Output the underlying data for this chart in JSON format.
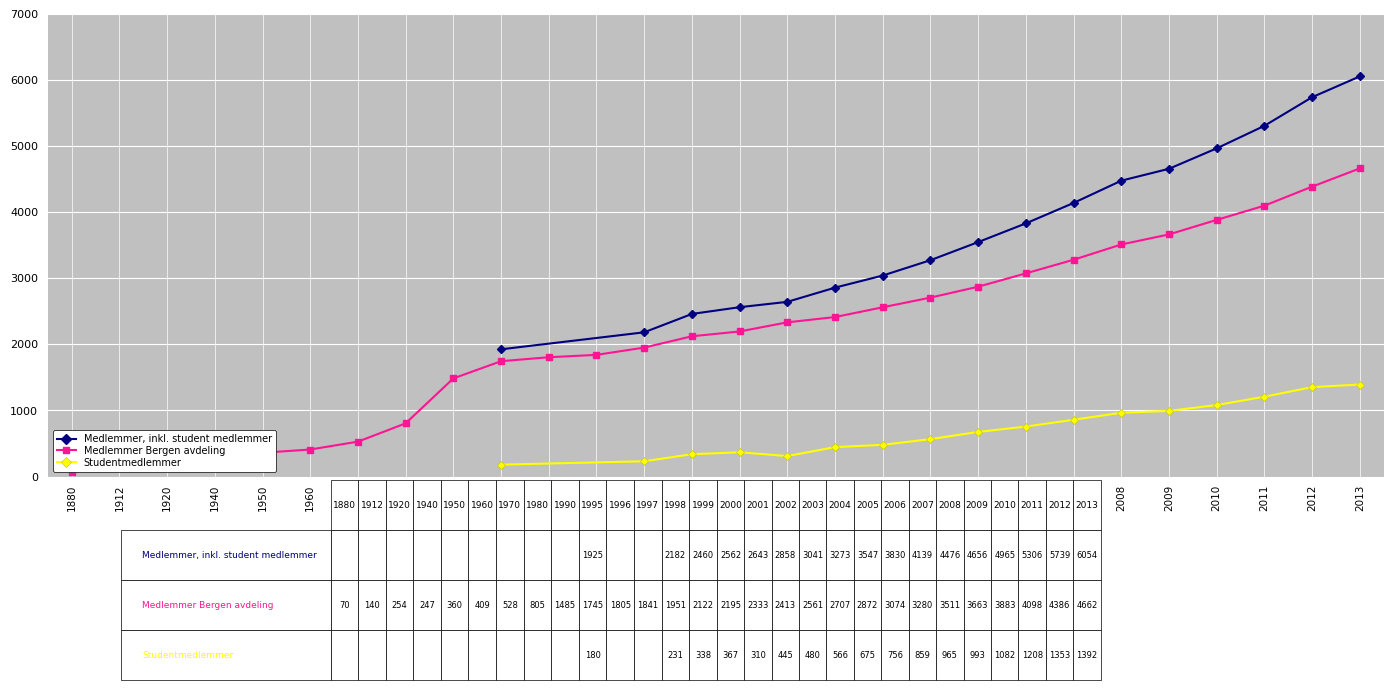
{
  "blue_years": [
    1995,
    1998,
    1999,
    2000,
    2001,
    2002,
    2003,
    2004,
    2005,
    2006,
    2007,
    2008,
    2009,
    2010,
    2011,
    2012,
    2013
  ],
  "blue_values": [
    1925,
    2182,
    2460,
    2562,
    2643,
    2858,
    3041,
    3273,
    3547,
    3830,
    4139,
    4476,
    4656,
    4965,
    5306,
    5739,
    6054
  ],
  "pink_years": [
    1880,
    1912,
    1920,
    1940,
    1950,
    1960,
    1970,
    1980,
    1990,
    1995,
    1996,
    1997,
    1998,
    1999,
    2000,
    2001,
    2002,
    2003,
    2004,
    2005,
    2006,
    2007,
    2008,
    2009,
    2010,
    2011,
    2012,
    2013
  ],
  "pink_values": [
    70,
    140,
    254,
    247,
    360,
    409,
    528,
    805,
    1485,
    1745,
    1805,
    1841,
    1951,
    2122,
    2195,
    2333,
    2413,
    2561,
    2707,
    2872,
    3074,
    3280,
    3511,
    3663,
    3883,
    4098,
    4386,
    4662
  ],
  "yellow_years": [
    1995,
    1998,
    1999,
    2000,
    2001,
    2002,
    2003,
    2004,
    2005,
    2006,
    2007,
    2008,
    2009,
    2010,
    2011,
    2012,
    2013
  ],
  "yellow_values": [
    180,
    231,
    338,
    367,
    310,
    445,
    480,
    566,
    675,
    756,
    859,
    965,
    993,
    1082,
    1208,
    1353,
    1392
  ],
  "blue_color": "#000080",
  "pink_color": "#FF1493",
  "yellow_color": "#FFFF00",
  "bg_color": "#C0C0C0",
  "ylim": [
    0,
    7000
  ],
  "yticks": [
    0,
    1000,
    2000,
    3000,
    4000,
    5000,
    6000,
    7000
  ],
  "all_years": [
    1880,
    1912,
    1920,
    1940,
    1950,
    1960,
    1970,
    1980,
    1990,
    1995,
    1996,
    1997,
    1998,
    1999,
    2000,
    2001,
    2002,
    2003,
    2004,
    2005,
    2006,
    2007,
    2008,
    2009,
    2010,
    2011,
    2012,
    2013
  ],
  "xtick_labels": [
    "1880",
    "1912",
    "1920",
    "1940",
    "1950",
    "1960",
    "1970",
    "1980",
    "1990",
    "1995",
    "1996",
    "1997",
    "1998",
    "1999",
    "2000",
    "2001",
    "2002",
    "2003",
    "2004",
    "2005",
    "2006",
    "2007",
    "2008",
    "2009",
    "2010",
    "2011",
    "2012",
    "2013"
  ],
  "legend_labels": [
    "Medlemmer, inkl. student medlemmer",
    "Medlemmer Bergen avdeling",
    "Studentmedlemmer"
  ],
  "legend_colors": [
    "#000080",
    "#FF1493",
    "#FFFF00"
  ],
  "table_blue_row": [
    "",
    "",
    "",
    "",
    "",
    "",
    "",
    "",
    "",
    "1925",
    "",
    "",
    "2182",
    "2460",
    "2562",
    "2643",
    "2858",
    "3041",
    "3273",
    "3547",
    "3830",
    "4139",
    "4476",
    "4656",
    "4965",
    "5306",
    "5739",
    "6054"
  ],
  "table_pink_row": [
    "70",
    "140",
    "254",
    "247",
    "360",
    "409",
    "528",
    "805",
    "1485",
    "1745",
    "1805",
    "1841",
    "1951",
    "2122",
    "2195",
    "2333",
    "2413",
    "2561",
    "2707",
    "2872",
    "3074",
    "3280",
    "3511",
    "3663",
    "3883",
    "4098",
    "4386",
    "4662"
  ],
  "table_yellow_row": [
    "",
    "",
    "",
    "",
    "",
    "",
    "",
    "",
    "",
    "180",
    "",
    "",
    "231",
    "338",
    "367",
    "310",
    "445",
    "480",
    "566",
    "675",
    "756",
    "859",
    "965",
    "993",
    "1082",
    "1208",
    "1353",
    "1392"
  ]
}
